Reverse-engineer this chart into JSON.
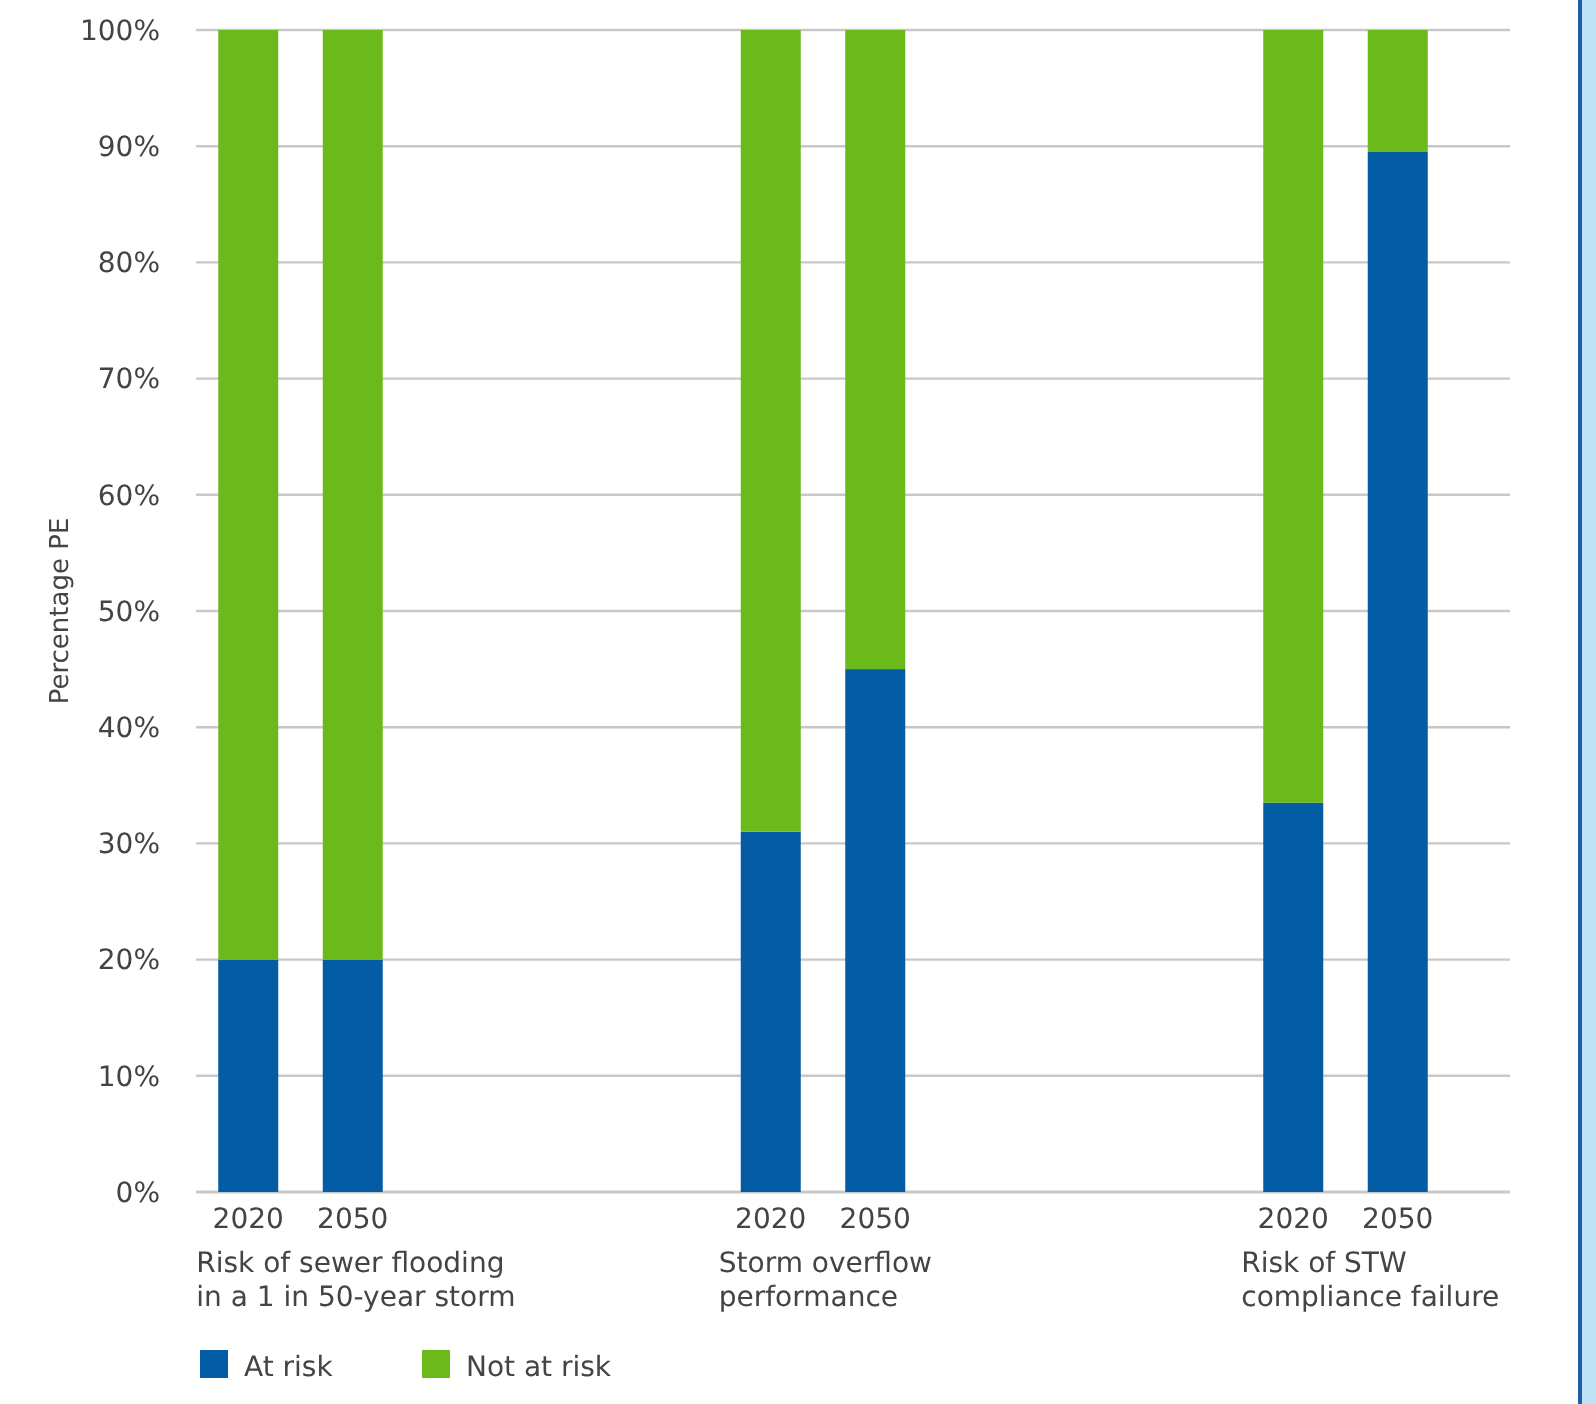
{
  "chart_data": {
    "type": "bar",
    "stacked": true,
    "ylabel": "Percentage PE",
    "categories": [
      "2020",
      "2050",
      null,
      null,
      null,
      "2020",
      "2050",
      null,
      null,
      null,
      "2020",
      "2050"
    ],
    "series": [
      {
        "name": "At risk",
        "color": "#045ca4",
        "values": [
          20,
          20,
          null,
          null,
          null,
          31,
          45,
          null,
          null,
          null,
          33.5,
          89.5
        ]
      },
      {
        "name": "Not at risk",
        "color": "#6cb91c",
        "values": [
          80,
          80,
          null,
          null,
          null,
          69,
          55,
          null,
          null,
          null,
          66.5,
          10.5
        ]
      }
    ],
    "ylim": [
      0,
      100
    ],
    "yticks": [
      {
        "value": 0,
        "label": "0%"
      },
      {
        "value": 10,
        "label": "10%"
      },
      {
        "value": 20,
        "label": "20%"
      },
      {
        "value": 30,
        "label": "30%"
      },
      {
        "value": 40,
        "label": "40%"
      },
      {
        "value": 50,
        "label": "50%"
      },
      {
        "value": 60,
        "label": "60%"
      },
      {
        "value": 70,
        "label": "70%"
      },
      {
        "value": 80,
        "label": "80%"
      },
      {
        "value": 90,
        "label": "90%"
      },
      {
        "value": 100,
        "label": "100%"
      }
    ],
    "grid": "y",
    "legend": "bottom",
    "annotations": [
      "Risk of sewer flooding\nin a 1 in 50-year storm",
      "Storm overflow\nperformance",
      "Risk of STW\ncompliance failure"
    ]
  }
}
